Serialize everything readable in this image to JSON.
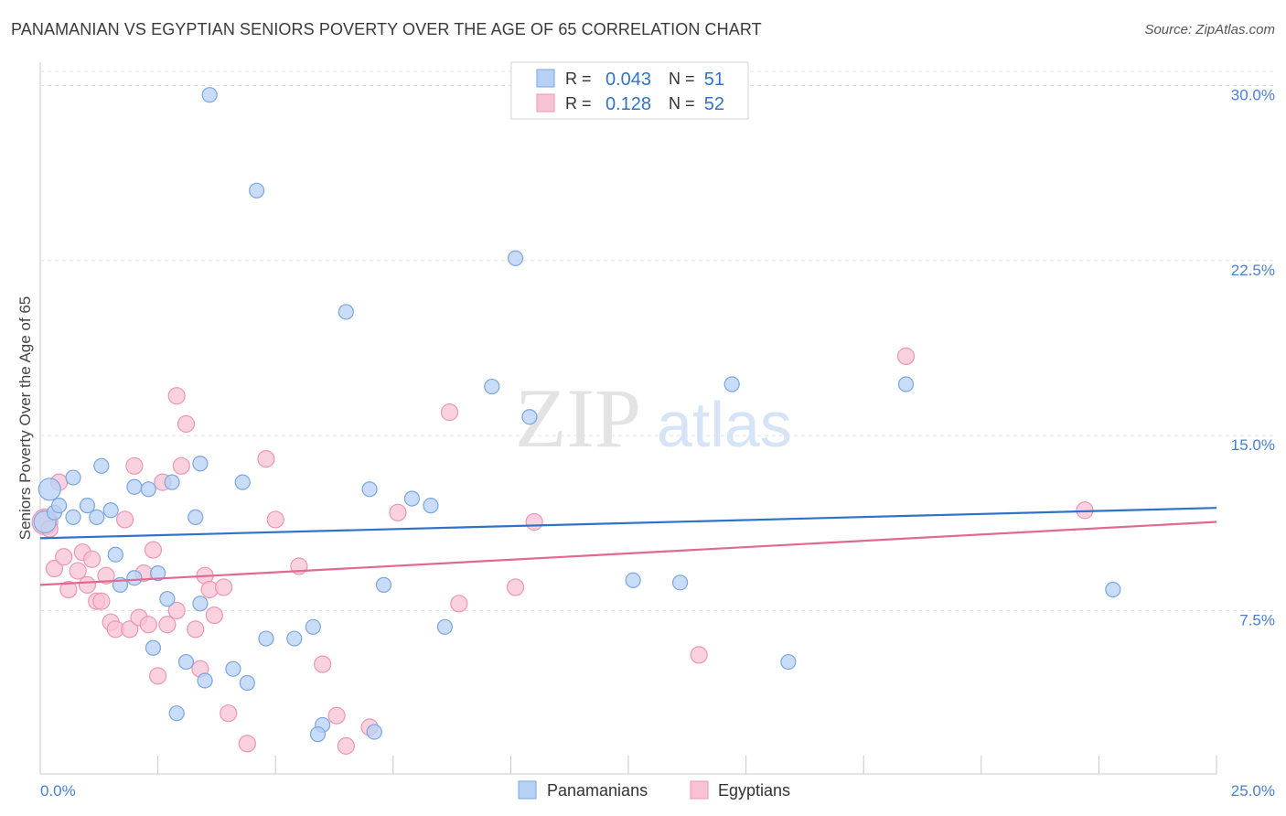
{
  "header": {
    "title": "PANAMANIAN VS EGYPTIAN SENIORS POVERTY OVER THE AGE OF 65 CORRELATION CHART",
    "source": "Source: ZipAtlas.com"
  },
  "watermark": {
    "zip": "ZIP",
    "atlas": "atlas"
  },
  "colors": {
    "panamanian_fill": "#b7d1f5",
    "panamanian_stroke": "#7aa6e0",
    "panamanian_line": "#2f73c9",
    "egyptian_fill": "#f8c3d4",
    "egyptian_stroke": "#ee95b3",
    "egyptian_line": "#e06893",
    "tick_label": "#4a7fd0",
    "r_value": "#2f73c9"
  },
  "chart_data": {
    "type": "scatter",
    "title": "PANAMANIAN VS EGYPTIAN SENIORS POVERTY OVER THE AGE OF 65 CORRELATION CHART",
    "xlabel": "",
    "ylabel": "Seniors Poverty Over the Age of 65",
    "xlim": [
      0,
      25
    ],
    "ylim": [
      0.5,
      31.0
    ],
    "x_tick_labels": [
      "0.0%",
      "25.0%"
    ],
    "y_ticks": [
      7.5,
      15.0,
      22.5,
      30.0
    ],
    "y_tick_labels": [
      "7.5%",
      "15.0%",
      "22.5%",
      "30.0%"
    ],
    "grid": true,
    "legend": {
      "position": "top-center",
      "rows": [
        {
          "r_label": "R =",
          "r_value": "0.043",
          "n_label": "N =",
          "n_value": "51"
        },
        {
          "r_label": "R =",
          "r_value": "0.128",
          "n_label": "N =",
          "n_value": "52"
        }
      ]
    },
    "bottom_legend": [
      "Panamanians",
      "Egyptians"
    ],
    "series": [
      {
        "name": "Panamanians",
        "trend": {
          "x": [
            0,
            25
          ],
          "y": [
            10.6,
            11.9
          ]
        },
        "points": [
          [
            0.2,
            12.7,
            12
          ],
          [
            0.1,
            11.3,
            12
          ],
          [
            0.3,
            11.7,
            8
          ],
          [
            0.4,
            12.0,
            8
          ],
          [
            0.7,
            13.2,
            8
          ],
          [
            0.7,
            11.5,
            8
          ],
          [
            1.0,
            12.0,
            8
          ],
          [
            1.2,
            11.5,
            8
          ],
          [
            1.3,
            13.7,
            8
          ],
          [
            1.5,
            11.8,
            8
          ],
          [
            1.6,
            9.9,
            8
          ],
          [
            1.7,
            8.6,
            8
          ],
          [
            2.0,
            8.9,
            8
          ],
          [
            2.0,
            12.8,
            8
          ],
          [
            2.3,
            12.7,
            8
          ],
          [
            2.5,
            9.1,
            8
          ],
          [
            2.7,
            8.0,
            8
          ],
          [
            2.8,
            13.0,
            8
          ],
          [
            3.3,
            11.5,
            8
          ],
          [
            3.4,
            7.8,
            8
          ],
          [
            2.4,
            5.9,
            8
          ],
          [
            3.1,
            5.3,
            8
          ],
          [
            3.5,
            4.5,
            8
          ],
          [
            2.9,
            3.1,
            8
          ],
          [
            4.1,
            5.0,
            8
          ],
          [
            4.4,
            4.4,
            8
          ],
          [
            4.8,
            6.3,
            8
          ],
          [
            5.4,
            6.3,
            8
          ],
          [
            5.8,
            6.8,
            8
          ],
          [
            6.0,
            2.6,
            8
          ],
          [
            5.9,
            2.2,
            8
          ],
          [
            7.1,
            2.3,
            8
          ],
          [
            7.3,
            8.6,
            8
          ],
          [
            7.0,
            12.7,
            8
          ],
          [
            7.9,
            12.3,
            8
          ],
          [
            8.3,
            12.0,
            8
          ],
          [
            8.6,
            6.8,
            8
          ],
          [
            9.6,
            17.1,
            8
          ],
          [
            10.1,
            22.6,
            8
          ],
          [
            10.4,
            15.8,
            8
          ],
          [
            12.6,
            8.8,
            8
          ],
          [
            13.6,
            8.7,
            8
          ],
          [
            14.7,
            17.2,
            8
          ],
          [
            15.9,
            5.3,
            8
          ],
          [
            18.4,
            17.2,
            8
          ],
          [
            22.8,
            8.4,
            8
          ],
          [
            3.4,
            13.8,
            8
          ],
          [
            4.3,
            13.0,
            8
          ],
          [
            6.5,
            20.3,
            8
          ],
          [
            3.6,
            29.6,
            8
          ],
          [
            4.6,
            25.5,
            8
          ]
        ]
      },
      {
        "name": "Egyptians",
        "trend": {
          "x": [
            0,
            25
          ],
          "y": [
            8.6,
            11.3
          ]
        },
        "points": [
          [
            0.1,
            11.3,
            14
          ],
          [
            0.2,
            11.0,
            9
          ],
          [
            0.3,
            9.3,
            9
          ],
          [
            0.4,
            13.0,
            9
          ],
          [
            0.5,
            9.8,
            9
          ],
          [
            0.6,
            8.4,
            9
          ],
          [
            0.8,
            9.2,
            9
          ],
          [
            0.9,
            10.0,
            9
          ],
          [
            1.0,
            8.6,
            9
          ],
          [
            1.1,
            9.7,
            9
          ],
          [
            1.2,
            7.9,
            9
          ],
          [
            1.3,
            7.9,
            9
          ],
          [
            1.4,
            9.0,
            9
          ],
          [
            1.5,
            7.0,
            9
          ],
          [
            1.6,
            6.7,
            9
          ],
          [
            1.8,
            11.4,
            9
          ],
          [
            1.9,
            6.7,
            9
          ],
          [
            2.0,
            13.7,
            9
          ],
          [
            2.1,
            7.2,
            9
          ],
          [
            2.2,
            9.1,
            9
          ],
          [
            2.3,
            6.9,
            9
          ],
          [
            2.4,
            10.1,
            9
          ],
          [
            2.5,
            4.7,
            9
          ],
          [
            2.6,
            13.0,
            9
          ],
          [
            2.7,
            6.9,
            9
          ],
          [
            2.9,
            7.5,
            9
          ],
          [
            3.0,
            13.7,
            9
          ],
          [
            3.1,
            15.5,
            9
          ],
          [
            3.3,
            6.7,
            9
          ],
          [
            3.4,
            5.0,
            9
          ],
          [
            3.5,
            9.0,
            9
          ],
          [
            3.6,
            8.4,
            9
          ],
          [
            3.7,
            7.3,
            9
          ],
          [
            3.9,
            8.5,
            9
          ],
          [
            4.0,
            3.1,
            9
          ],
          [
            4.4,
            1.8,
            9
          ],
          [
            4.8,
            14.0,
            9
          ],
          [
            5.0,
            11.4,
            9
          ],
          [
            5.5,
            9.4,
            9
          ],
          [
            6.0,
            5.2,
            9
          ],
          [
            6.3,
            3.0,
            9
          ],
          [
            6.5,
            1.7,
            9
          ],
          [
            7.0,
            2.5,
            9
          ],
          [
            7.6,
            11.7,
            9
          ],
          [
            8.7,
            16.0,
            9
          ],
          [
            8.9,
            7.8,
            9
          ],
          [
            10.1,
            8.5,
            9
          ],
          [
            10.5,
            11.3,
            9
          ],
          [
            14.0,
            5.6,
            9
          ],
          [
            18.4,
            18.4,
            9
          ],
          [
            22.2,
            11.8,
            9
          ],
          [
            2.9,
            16.7,
            9
          ]
        ]
      }
    ]
  }
}
